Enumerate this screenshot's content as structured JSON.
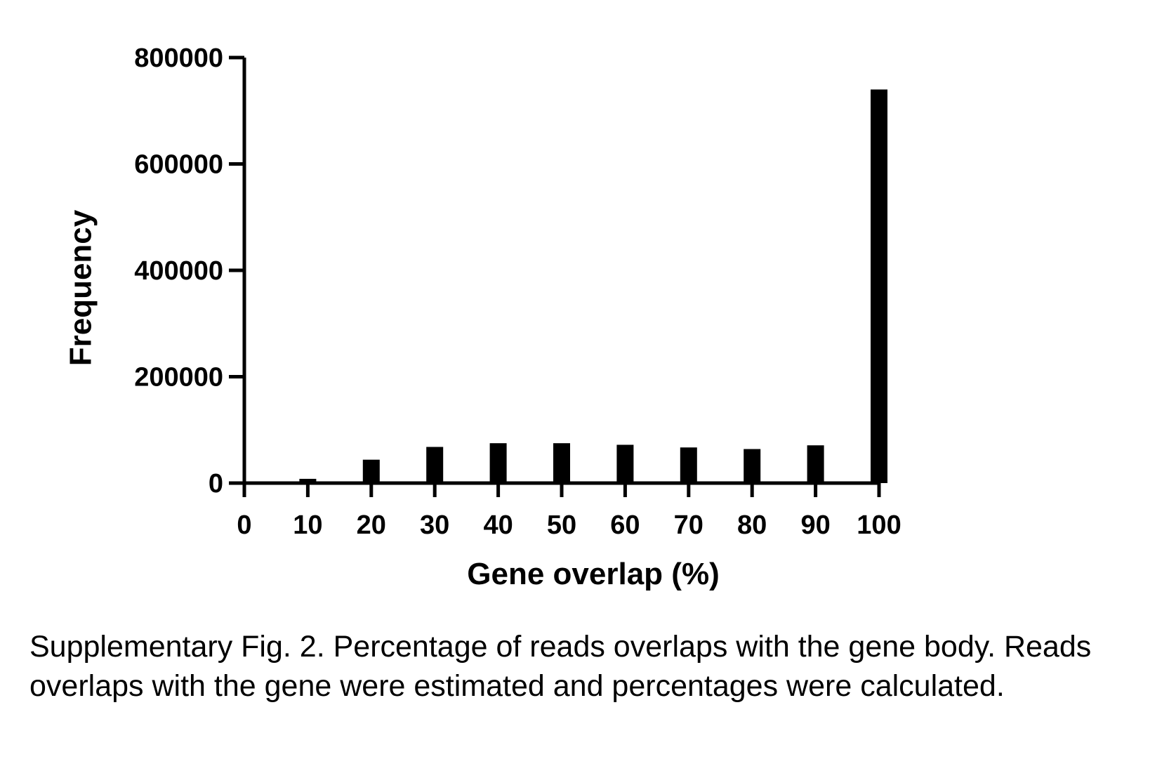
{
  "chart_data": {
    "type": "bar",
    "title": "",
    "xlabel": "Gene overlap  (%)",
    "ylabel": "Frequency",
    "categories": [
      10,
      20,
      30,
      40,
      50,
      60,
      70,
      80,
      90,
      100
    ],
    "values": [
      8000,
      44000,
      68000,
      75000,
      75000,
      72000,
      67000,
      64000,
      71000,
      740000
    ],
    "x_ticks": [
      "0",
      "10",
      "20",
      "30",
      "40",
      "50",
      "60",
      "70",
      "80",
      "90",
      "100"
    ],
    "y_ticks": [
      "0",
      "200000",
      "400000",
      "600000",
      "800000"
    ],
    "xlim": [
      0,
      100
    ],
    "ylim": [
      0,
      800000
    ],
    "grid": false,
    "legend": "none",
    "bar_color": "#000000"
  },
  "caption": "Supplementary Fig. 2. Percentage of reads overlaps with the gene body. Reads overlaps with the gene were estimated and percentages were calculated."
}
